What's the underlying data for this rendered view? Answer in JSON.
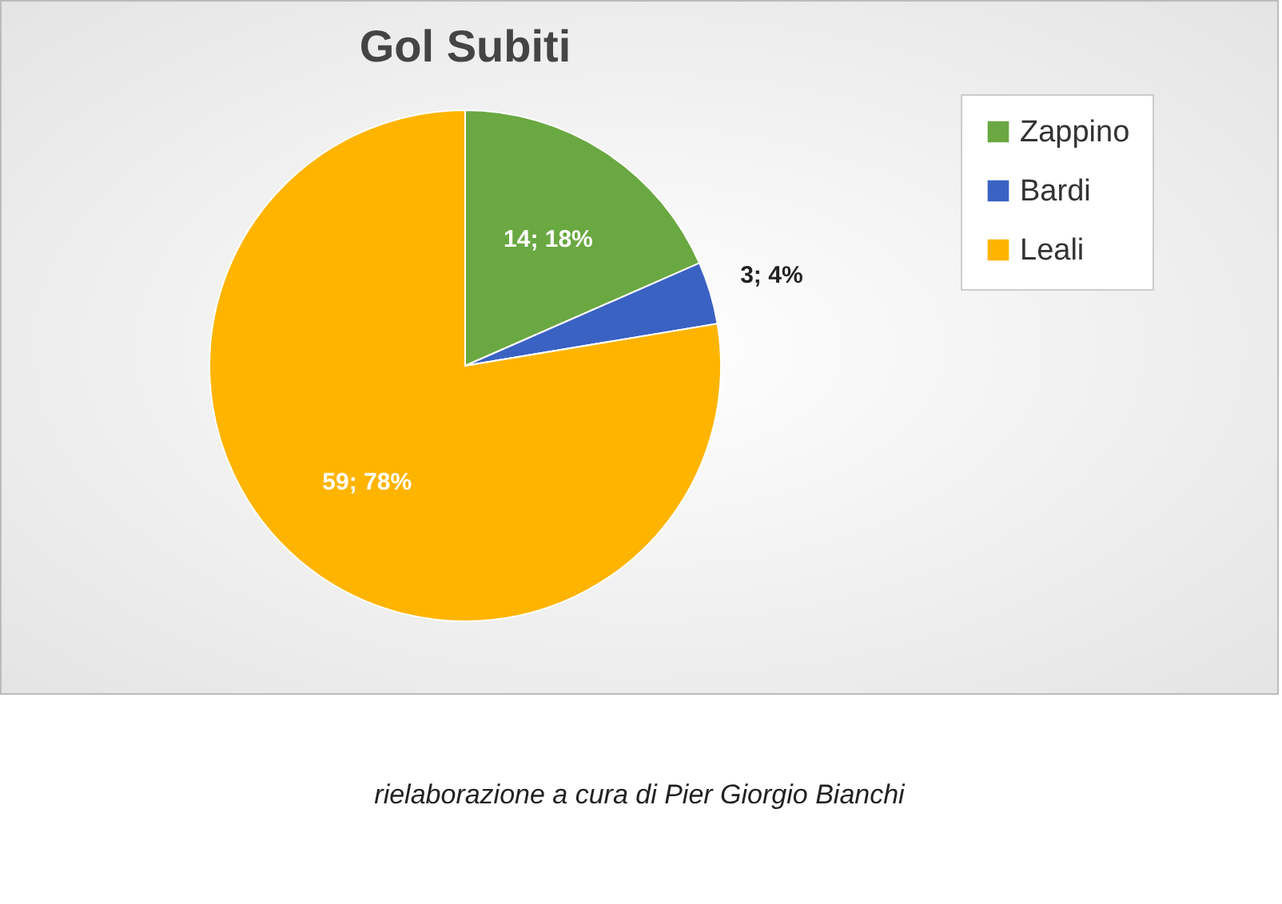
{
  "chart_data": {
    "type": "pie",
    "title": "Gol Subiti",
    "categories": [
      "Zappino",
      "Bardi",
      "Leali"
    ],
    "values": [
      14,
      3,
      59
    ],
    "colors": [
      "#6aa842",
      "#3a62c2",
      "#ffb400"
    ],
    "value_labels": [
      "14; 18%",
      "3; 4%",
      "59; 78%"
    ],
    "legend": "right",
    "annotations": [
      "rielaborazione a cura di Pier Giorgio Bianchi"
    ]
  }
}
